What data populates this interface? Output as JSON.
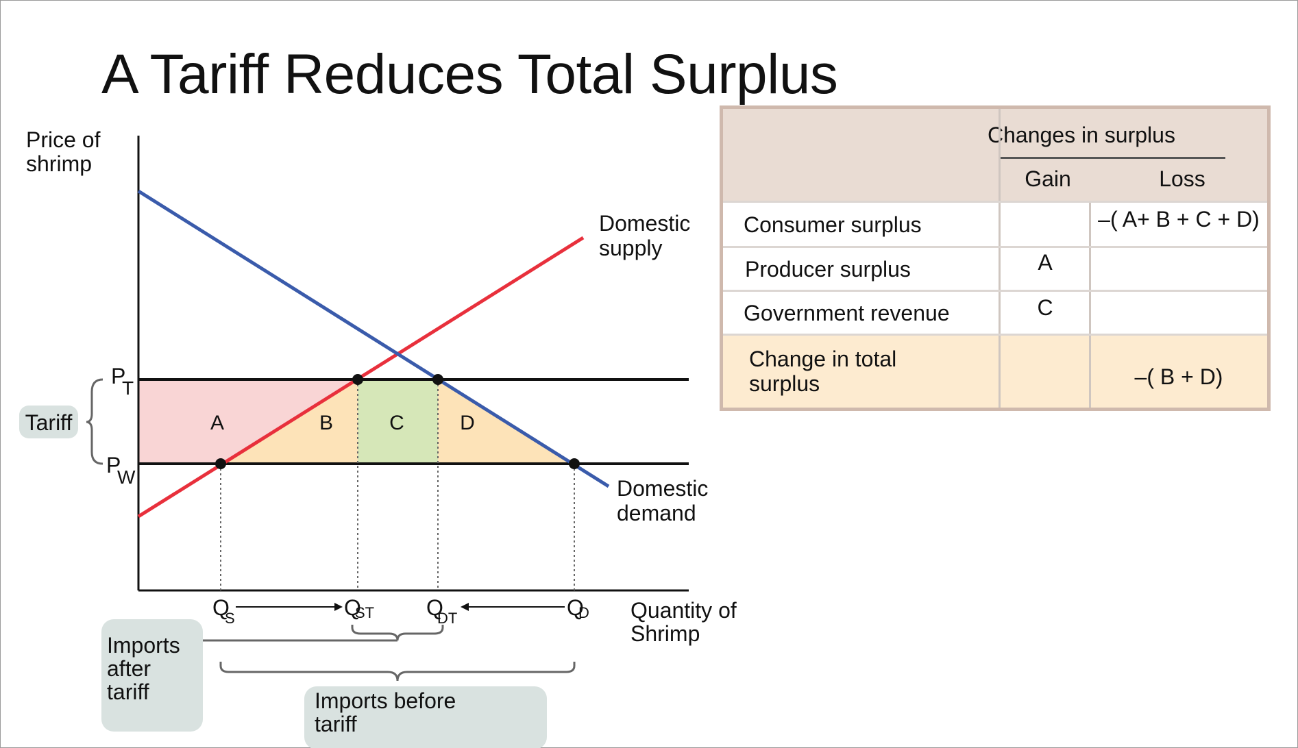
{
  "title": "A Tariff Reduces Total Surplus",
  "graph": {
    "y_axis_label": [
      "Price of",
      "shrimp"
    ],
    "x_axis_label": [
      "Quantity of",
      "Shrimp"
    ],
    "supply_label": [
      "Domestic",
      "supply"
    ],
    "demand_label": [
      "Domestic",
      "demand"
    ],
    "price_labels": {
      "tariff_price": "P",
      "tariff_sub": "T",
      "world_price": "P",
      "world_sub": "W"
    },
    "tariff_label": "Tariff",
    "area_labels": [
      "A",
      "B",
      "C",
      "D"
    ],
    "quantity_labels": [
      {
        "main": "Q",
        "sub": "S"
      },
      {
        "main": "Q",
        "sub": "ST"
      },
      {
        "main": "Q",
        "sub": "DT"
      },
      {
        "main": "Q",
        "sub": "D"
      }
    ],
    "imports_after_label": [
      "Imports",
      "after",
      "tariff"
    ],
    "imports_before_label": [
      "Imports before",
      "tariff"
    ],
    "colors": {
      "supply": "#e8303c",
      "demand": "#3a5bab",
      "area_A": "#f9d5d5",
      "area_B_D": "#fde3b8",
      "area_C": "#d6e7b8",
      "callout": "#d9e2e0"
    }
  },
  "table": {
    "header": "Changes in surplus",
    "col_gain": "Gain",
    "col_loss": "Loss",
    "rows": [
      {
        "label": "Consumer surplus",
        "gain": "",
        "loss": "–( A+ B + C + D)"
      },
      {
        "label": "Producer surplus",
        "gain": "A",
        "loss": ""
      },
      {
        "label": "Government revenue",
        "gain": "C",
        "loss": ""
      }
    ],
    "total": {
      "label_line1": "Change in total",
      "label_line2": "surplus",
      "gain": "",
      "loss": "–( B + D)"
    }
  }
}
